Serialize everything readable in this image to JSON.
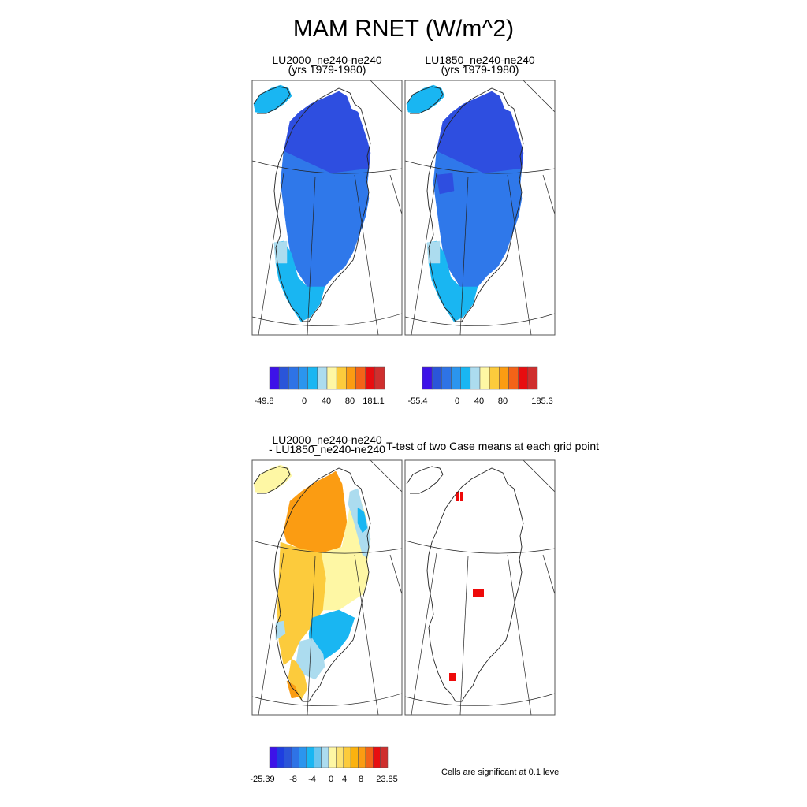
{
  "title": "MAM RNET (W/m^2)",
  "panels": [
    {
      "id": "p1",
      "title": [
        "LU2000_ne240-ne240",
        "(yrs 1979-1980)"
      ]
    },
    {
      "id": "p2",
      "title": [
        "LU1850_ne240-ne240",
        "(yrs 1979-1980)"
      ]
    },
    {
      "id": "p3",
      "title": [
        "LU2000_ne240-ne240",
        "- LU1850_ne240-ne240"
      ]
    },
    {
      "id": "p4",
      "title": [
        "T-test of two Case means at each grid point"
      ]
    }
  ],
  "colorbars": [
    {
      "id": "cb1",
      "colors": [
        "#3d12e8",
        "#2a55d9",
        "#2e73e6",
        "#2b95ee",
        "#19b6f2",
        "#acdcef",
        "#fef7a4",
        "#fccb3c",
        "#fb9c12",
        "#f36318",
        "#e80d10",
        "#cf2f2e"
      ],
      "labels": [
        "-49.8",
        "0",
        "40",
        "80",
        "181.1"
      ]
    },
    {
      "id": "cb2",
      "colors": [
        "#3d12e8",
        "#2a55d9",
        "#2e73e6",
        "#2b95ee",
        "#19b6f2",
        "#acdcef",
        "#fef7a4",
        "#fccb3c",
        "#fb9c12",
        "#f36318",
        "#e80d10",
        "#cf2f2e"
      ],
      "labels": [
        "-55.4",
        "0",
        "40",
        "80",
        "185.3"
      ]
    },
    {
      "id": "cb3",
      "colors": [
        "#3d12e8",
        "#1e3ee0",
        "#2a55d9",
        "#2e73e6",
        "#2b95ee",
        "#19b6f2",
        "#6ac5ef",
        "#acdcef",
        "#fef7a4",
        "#fde373",
        "#fccb3c",
        "#fbb20f",
        "#fb9c12",
        "#f36318",
        "#e80d10",
        "#cf2f2e"
      ],
      "labels": [
        "-25.39",
        "-8",
        "-4",
        "0",
        "4",
        "8",
        "23.85"
      ]
    }
  ],
  "significance_note": "Cells are significant at 0.1 level",
  "chart_data": [
    {
      "type": "heatmap",
      "panel": "LU2000_ne240-ne240 (yrs 1979-1980)",
      "variable": "MAM RNET",
      "units": "W/m^2",
      "range": [
        -49.8,
        181.1
      ],
      "regions": [
        {
          "region": "north interior",
          "value": -35
        },
        {
          "region": "northeast coast",
          "value": -35
        },
        {
          "region": "central interior",
          "value": -22
        },
        {
          "region": "southwest margin",
          "value": -5
        },
        {
          "region": "far south tip",
          "value": -5
        },
        {
          "region": "Ellesmere (NW corner)",
          "value": -5
        }
      ]
    },
    {
      "type": "heatmap",
      "panel": "LU1850_ne240-ne240 (yrs 1979-1980)",
      "variable": "MAM RNET",
      "units": "W/m^2",
      "range": [
        -55.4,
        185.3
      ],
      "regions": [
        {
          "region": "north interior",
          "value": -38
        },
        {
          "region": "northeast coast",
          "value": -38
        },
        {
          "region": "central interior",
          "value": -25
        },
        {
          "region": "southwest margin",
          "value": -6
        },
        {
          "region": "far south tip",
          "value": -6
        },
        {
          "region": "Ellesmere (NW corner)",
          "value": -6
        }
      ]
    },
    {
      "type": "heatmap",
      "panel": "LU2000_ne240-ne240 - LU1850_ne240-ne240",
      "variable": "MAM RNET difference",
      "units": "W/m^2",
      "range": [
        -25.39,
        23.85
      ],
      "regions": [
        {
          "region": "northwest interior",
          "value": 6
        },
        {
          "region": "west interior",
          "value": 4
        },
        {
          "region": "central interior",
          "value": 2
        },
        {
          "region": "east coast",
          "value": -2
        },
        {
          "region": "southeast",
          "value": -4
        },
        {
          "region": "Ellesmere (NW corner)",
          "value": 1
        }
      ]
    },
    {
      "type": "heatmap",
      "panel": "T-test of two Case means at each grid point",
      "note": "significant cells at 0.1 level",
      "regions": [
        {
          "region": "north interior",
          "significant": true
        },
        {
          "region": "central interior",
          "significant": true
        },
        {
          "region": "southwest",
          "significant": true
        }
      ]
    }
  ]
}
